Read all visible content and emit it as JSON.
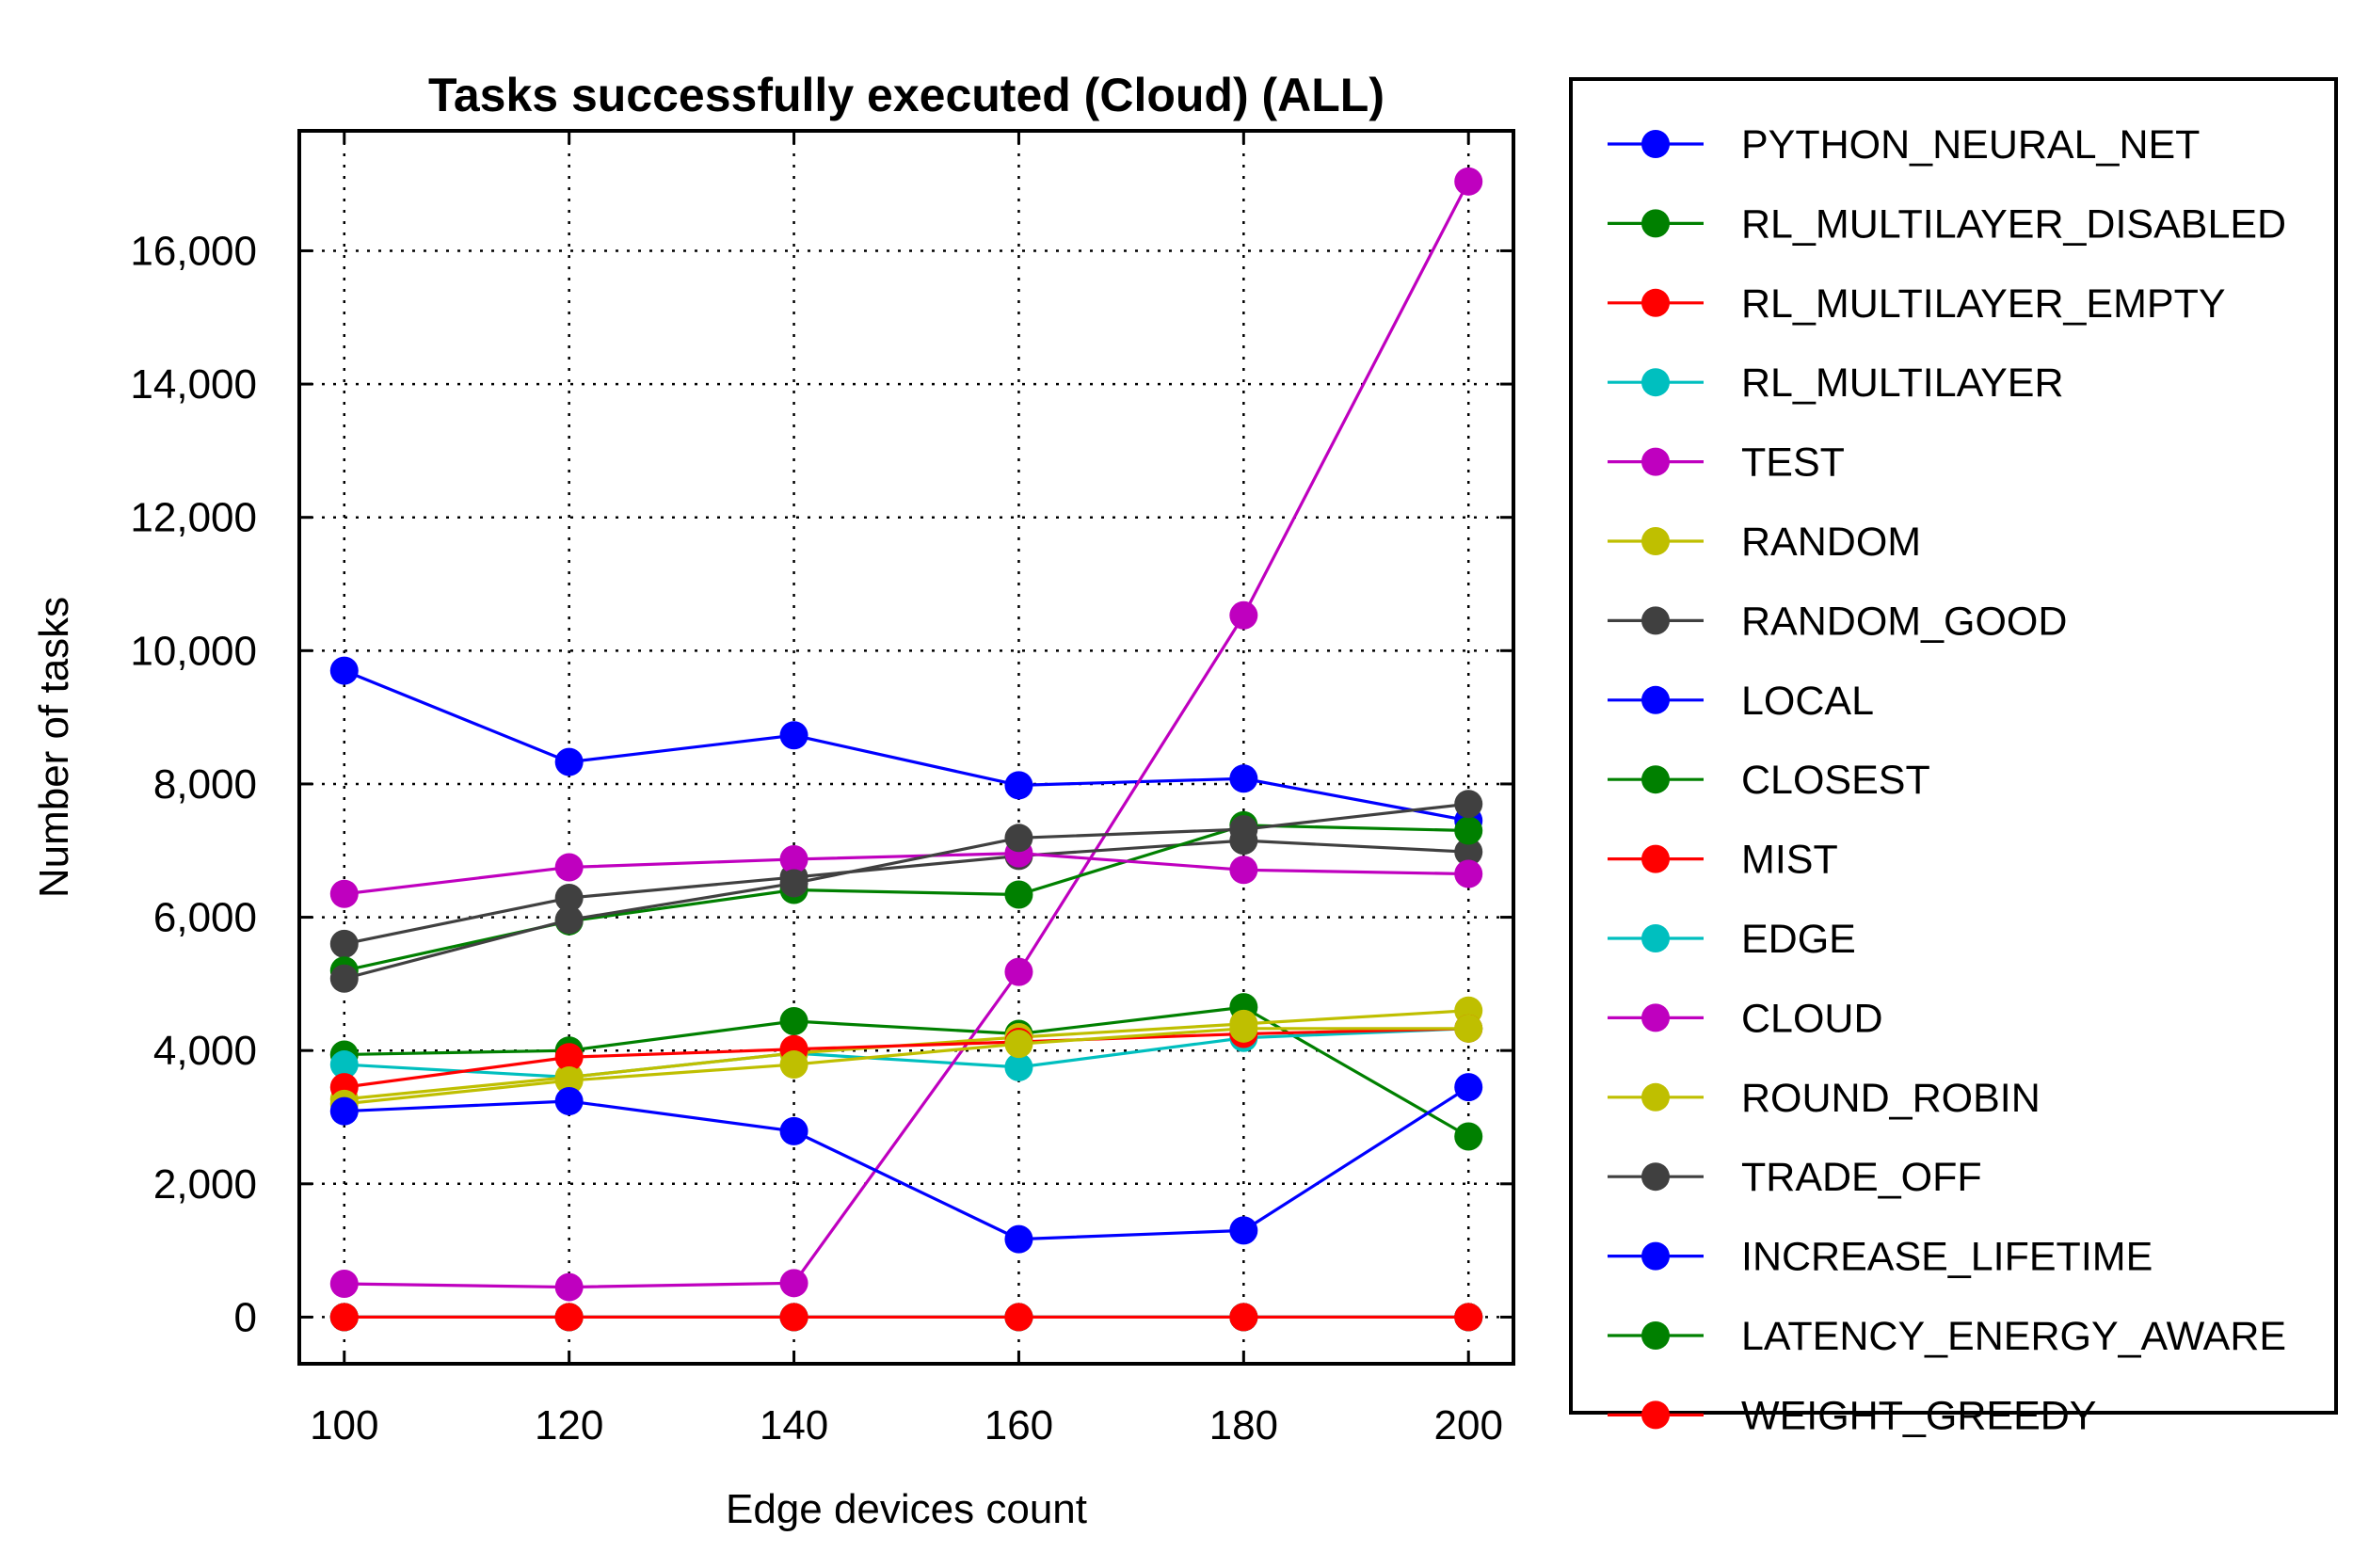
{
  "chart_data": {
    "type": "line",
    "title": "Tasks successfully executed (Cloud) (ALL)",
    "xlabel": "Edge devices count",
    "ylabel": "Number of tasks",
    "x": [
      100,
      120,
      140,
      160,
      180,
      200
    ],
    "xticks": [
      "100",
      "120",
      "140",
      "160",
      "180",
      "200"
    ],
    "yticks": [
      {
        "value": 0,
        "label": "0"
      },
      {
        "value": 2000,
        "label": "2,000"
      },
      {
        "value": 4000,
        "label": "4,000"
      },
      {
        "value": 6000,
        "label": "6,000"
      },
      {
        "value": 8000,
        "label": "8,000"
      },
      {
        "value": 10000,
        "label": "10,000"
      },
      {
        "value": 12000,
        "label": "12,000"
      },
      {
        "value": 14000,
        "label": "14,000"
      },
      {
        "value": 16000,
        "label": "16,000"
      }
    ],
    "xlim": [
      96,
      204
    ],
    "ylim": [
      -700,
      17800
    ],
    "grid": true,
    "legend_position": "right, outside plot",
    "series": [
      {
        "name": "PYTHON_NEURAL_NET",
        "color": "#0000ff",
        "values": [
          9700,
          8330,
          8730,
          7980,
          8080,
          7450
        ]
      },
      {
        "name": "RL_MULTILAYER_DISABLED",
        "color": "#008000",
        "values": [
          3940,
          4000,
          4440,
          4250,
          4650,
          2710
        ]
      },
      {
        "name": "RL_MULTILAYER_EMPTY",
        "color": "#ff0000",
        "values": [
          0,
          0,
          0,
          0,
          0,
          0
        ]
      },
      {
        "name": "RL_MULTILAYER",
        "color": "#00bfbf",
        "values": [
          3790,
          3600,
          3960,
          3750,
          4190,
          4330
        ]
      },
      {
        "name": "TEST",
        "color": "#bf00bf",
        "values": [
          500,
          450,
          510,
          5180,
          10530,
          17040
        ]
      },
      {
        "name": "RANDOM",
        "color": "#bfbf00",
        "values": [
          3270,
          3600,
          3960,
          4200,
          4400,
          4600
        ]
      },
      {
        "name": "RANDOM_GOOD",
        "color": "#404040",
        "values": [
          5600,
          6290,
          6600,
          6920,
          7150,
          6980
        ]
      },
      {
        "name": "LOCAL",
        "color": "#0000ff",
        "values": [
          0,
          0,
          0,
          0,
          0,
          0
        ]
      },
      {
        "name": "CLOSEST",
        "color": "#008000",
        "values": [
          5200,
          5940,
          6410,
          6340,
          7380,
          7300
        ]
      },
      {
        "name": "MIST",
        "color": "#ff0000",
        "values": [
          3450,
          3900,
          4020,
          4130,
          4250,
          4330
        ]
      },
      {
        "name": "EDGE",
        "color": "#00bfbf",
        "values": [
          0,
          0,
          0,
          0,
          0,
          0
        ]
      },
      {
        "name": "CLOUD",
        "color": "#bf00bf",
        "values": [
          6350,
          6750,
          6870,
          6960,
          6710,
          6650
        ]
      },
      {
        "name": "ROUND_ROBIN",
        "color": "#bfbf00",
        "values": [
          3200,
          3550,
          3790,
          4100,
          4330,
          4330
        ]
      },
      {
        "name": "TRADE_OFF",
        "color": "#404040",
        "values": [
          5080,
          5960,
          6510,
          7190,
          7320,
          7700
        ]
      },
      {
        "name": "INCREASE_LIFETIME",
        "color": "#0000ff",
        "values": [
          3090,
          3240,
          2790,
          1170,
          1300,
          3450
        ]
      },
      {
        "name": "LATENCY_ENERGY_AWARE",
        "color": "#008000",
        "values": [
          0,
          0,
          0,
          0,
          0,
          0
        ]
      },
      {
        "name": "WEIGHT_GREEDY",
        "color": "#ff0000",
        "values": [
          0,
          0,
          0,
          0,
          0,
          0
        ]
      }
    ]
  }
}
